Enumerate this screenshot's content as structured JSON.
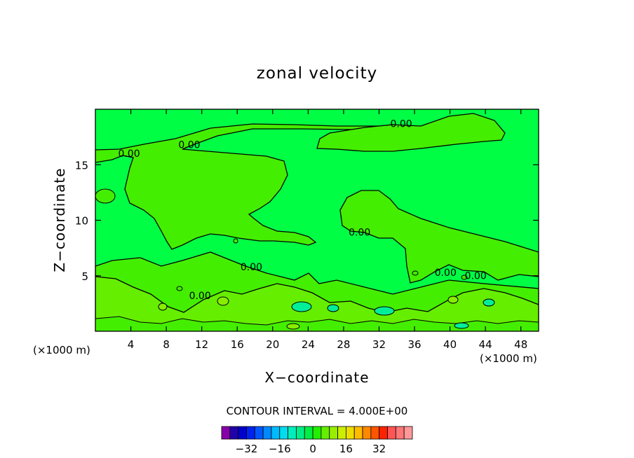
{
  "chart_data": {
    "type": "contour",
    "title": "zonal velocity",
    "xlabel": "X−coordinate",
    "ylabel": "Z−coordinate",
    "x_unit_left": "(×1000 m)",
    "x_unit_right": "(×1000 m)",
    "xlim": [
      0,
      50
    ],
    "ylim": [
      0,
      20
    ],
    "x_ticks": [
      4,
      8,
      12,
      16,
      20,
      24,
      28,
      32,
      36,
      40,
      44,
      48
    ],
    "y_ticks": [
      5,
      10,
      15
    ],
    "contour_interval_label": "CONTOUR INTERVAL = 4.000E+00",
    "contour_labels": [
      {
        "text": "0.00",
        "x": 34.5,
        "y": 18.4
      },
      {
        "text": "0.00",
        "x": 10.6,
        "y": 16.5
      },
      {
        "text": "0.00",
        "x": 3.8,
        "y": 15.7
      },
      {
        "text": "0.00",
        "x": 29.8,
        "y": 8.6
      },
      {
        "text": "0.00",
        "x": 17.6,
        "y": 5.5
      },
      {
        "text": "0.00",
        "x": 11.8,
        "y": 2.9
      },
      {
        "text": "0.00",
        "x": 39.5,
        "y": 5.0
      },
      {
        "text": "0.00",
        "x": 42.9,
        "y": 4.7
      }
    ],
    "colorbar": {
      "tick_labels": [
        "−32",
        "−16",
        "0",
        "16",
        "32"
      ],
      "tick_values": [
        -32,
        -16,
        0,
        16,
        32
      ],
      "colors": [
        "#8800aa",
        "#2200aa",
        "#0000cc",
        "#0022ee",
        "#0055ff",
        "#0088ff",
        "#00bbff",
        "#00ddee",
        "#00eebb",
        "#00ee88",
        "#00ee44",
        "#22ee00",
        "#66ee00",
        "#99ee00",
        "#ccee00",
        "#eedd00",
        "#ffbb00",
        "#ff8800",
        "#ff5500",
        "#ff2200",
        "#ff5555",
        "#ff7777",
        "#ff9999"
      ]
    },
    "colors": {
      "background_field": "#00ff44",
      "positive_light": "#44ee00",
      "positive_medium": "#88ee00",
      "negative_light": "#00ee99"
    }
  }
}
